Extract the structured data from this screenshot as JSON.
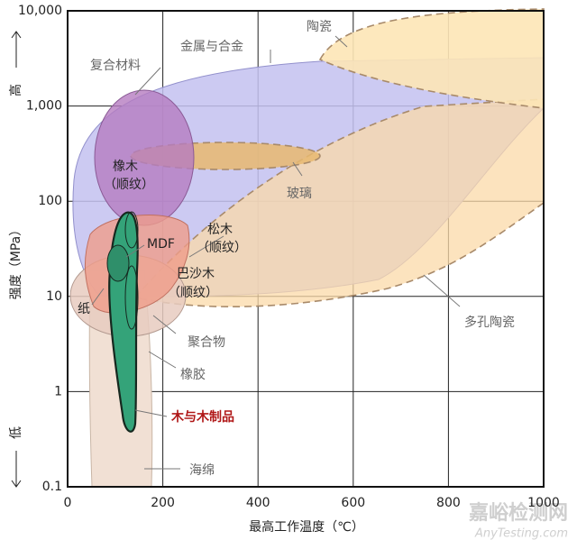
{
  "chart_data": {
    "type": "region",
    "ylabel": "强度（MPa）",
    "ylabel_high": "高",
    "ylabel_low": "低",
    "xlabel": "最高工作温度（℃）",
    "xlim": [
      0,
      1000
    ],
    "xticks": [
      0,
      200,
      400,
      600,
      800,
      1000
    ],
    "ylim": [
      0.1,
      10000
    ],
    "yscale": "log",
    "yticks": [
      0.1,
      1,
      10,
      100,
      {
        "value": 1000,
        "label": "1,000"
      },
      {
        "value": 10000,
        "label": "10,000"
      }
    ],
    "grid": true,
    "regions": [
      {
        "label": [
          "陶瓷"
        ]
      },
      {
        "label": [
          "金属与合金"
        ]
      },
      {
        "label": [
          "复合材料"
        ]
      },
      {
        "label": [
          "橡木",
          "（顺纹）"
        ]
      },
      {
        "label": [
          "玻璃"
        ]
      },
      {
        "label": [
          "松木",
          "（顺纹）"
        ]
      },
      {
        "label": [
          "MDF"
        ]
      },
      {
        "label": [
          "巴沙木",
          "（顺纹）"
        ]
      },
      {
        "label": [
          "纸"
        ]
      },
      {
        "label": [
          "多孔陶瓷"
        ]
      },
      {
        "label": [
          "聚合物"
        ]
      },
      {
        "label": [
          "橡胶"
        ]
      },
      {
        "label": [
          "木与木制品"
        ]
      },
      {
        "label": [
          "海绵"
        ]
      }
    ],
    "watermark": [
      "嘉峪检测网",
      "AnyTesting.com"
    ]
  }
}
